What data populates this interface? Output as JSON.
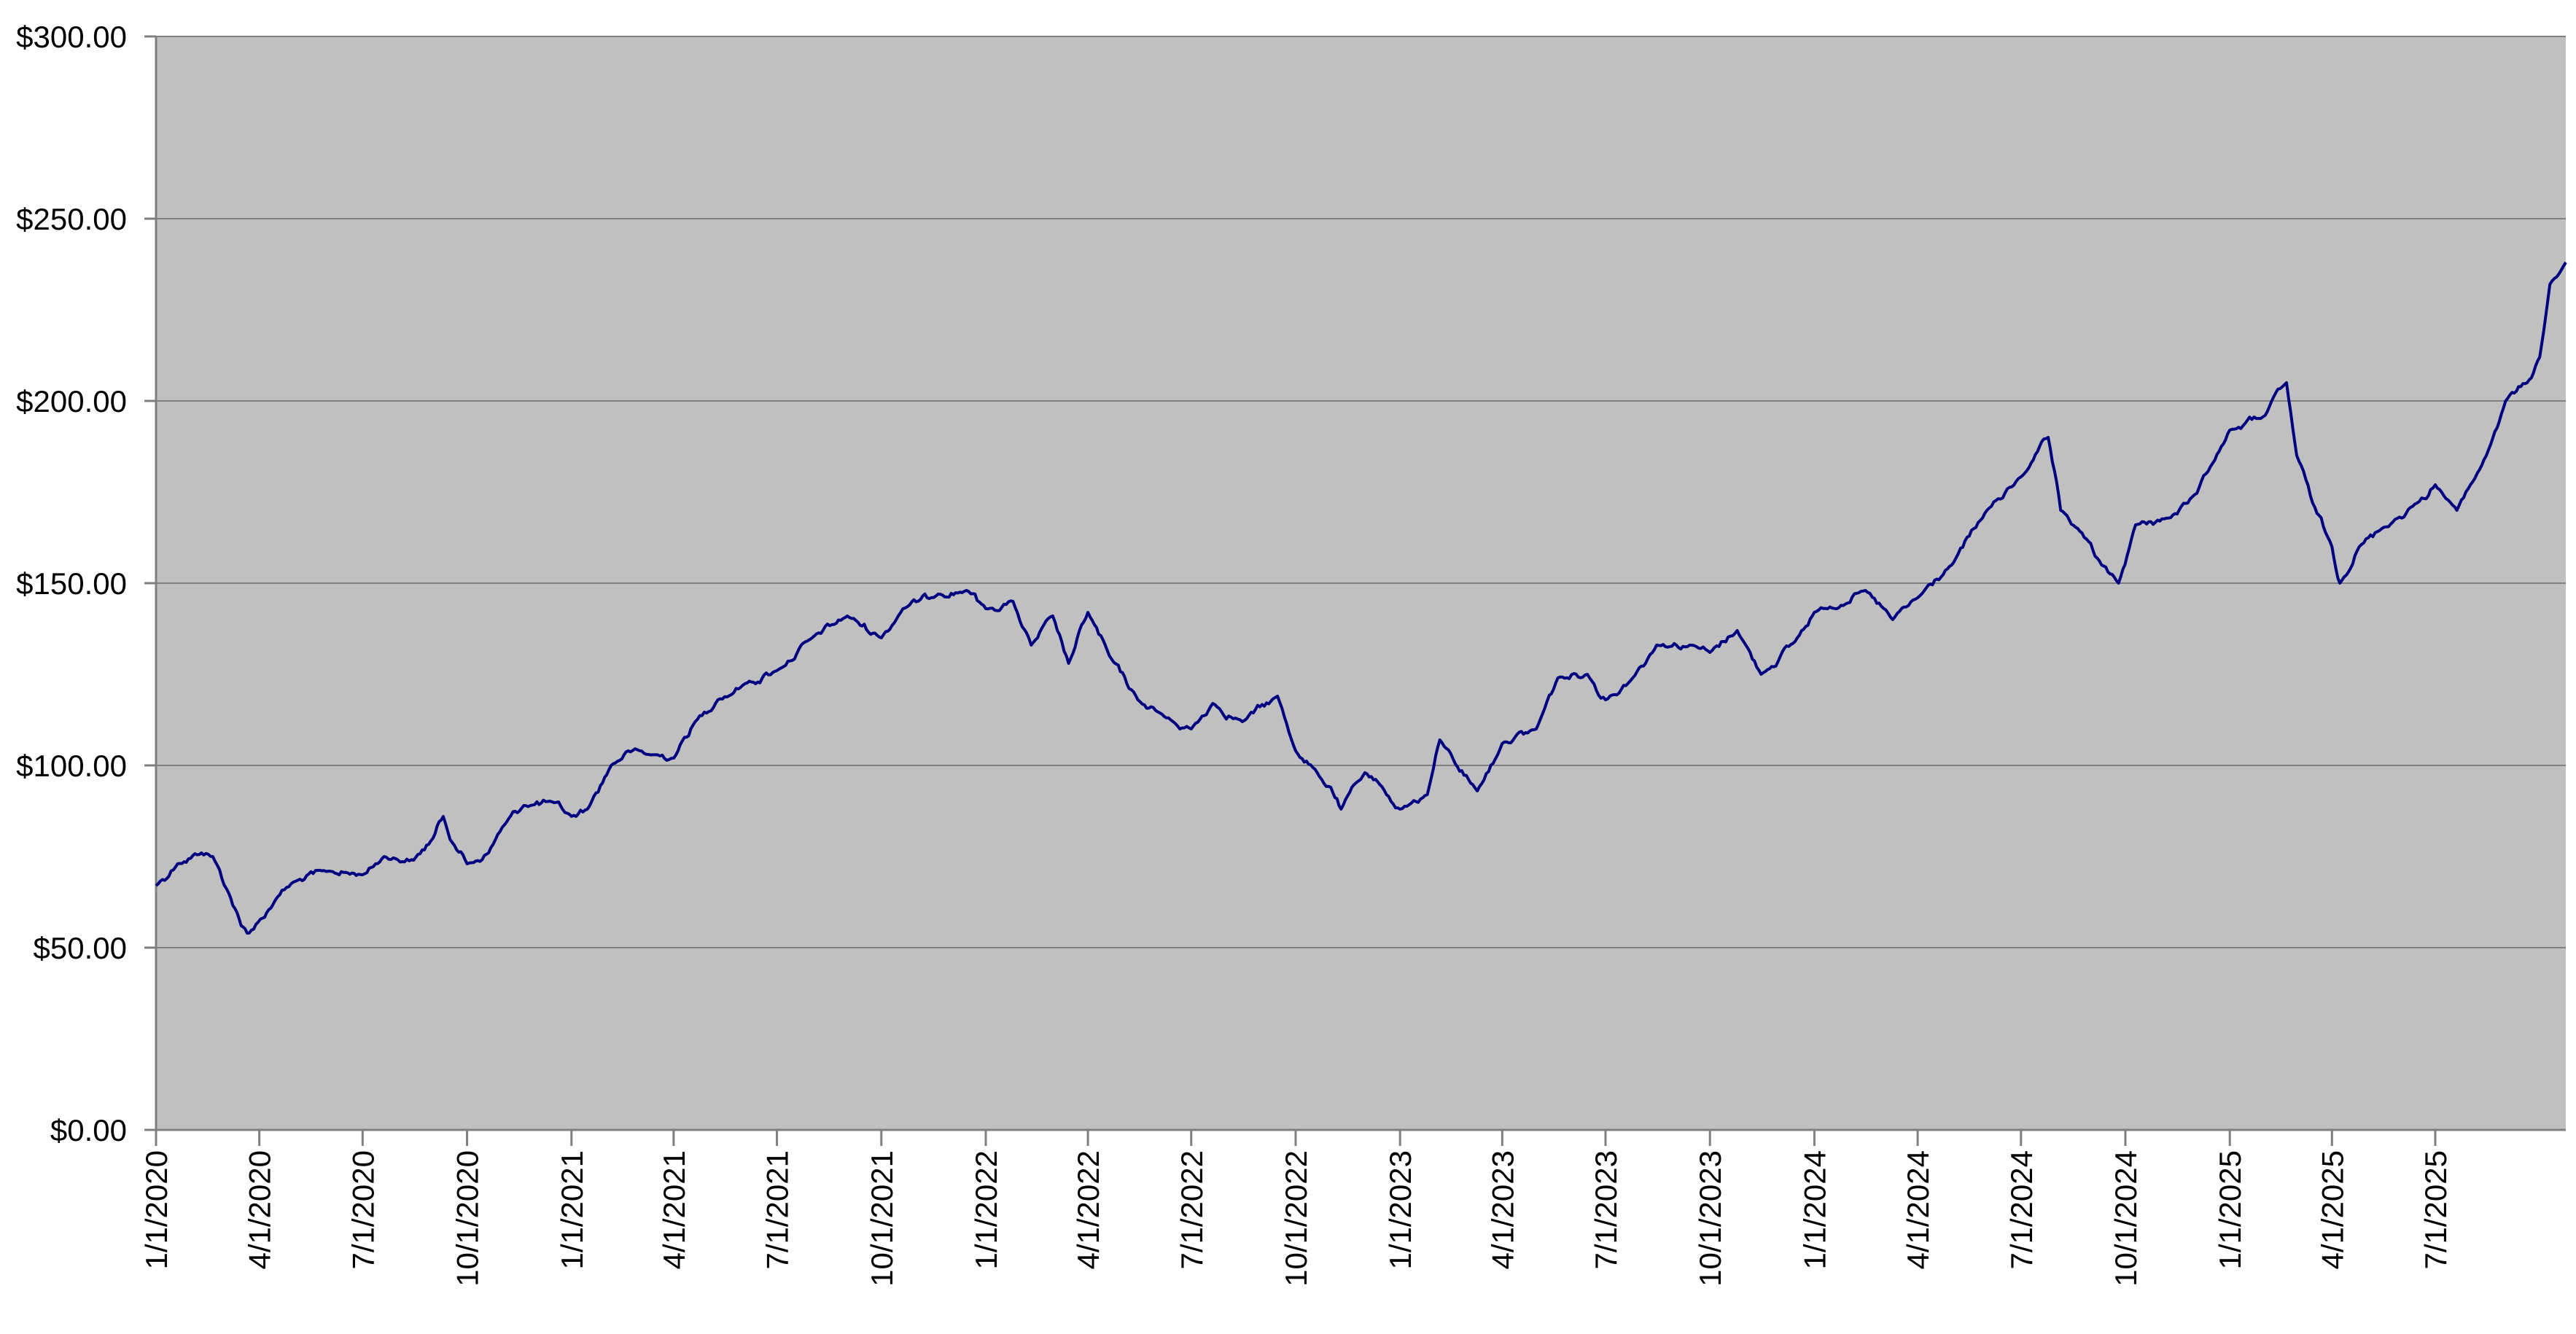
{
  "chart_data": {
    "type": "line",
    "title": "",
    "xlabel": "",
    "ylabel": "",
    "ylim": [
      0,
      300
    ],
    "xlim": [
      "2020-01-01",
      "2025-10-24"
    ],
    "grid": true,
    "legend": "none",
    "y_ticks": [
      0,
      50,
      100,
      150,
      200,
      250,
      300
    ],
    "y_tick_labels": [
      "$0.00",
      "$50.00",
      "$100.00",
      "$150.00",
      "$200.00",
      "$250.00",
      "$300.00"
    ],
    "x_ticks": [
      "2020-01-01",
      "2020-04-01",
      "2020-07-01",
      "2020-10-01",
      "2021-01-01",
      "2021-04-01",
      "2021-07-01",
      "2021-10-01",
      "2022-01-01",
      "2022-04-01",
      "2022-07-01",
      "2022-10-01",
      "2023-01-01",
      "2023-04-01",
      "2023-07-01",
      "2023-10-01",
      "2024-01-01",
      "2024-04-01",
      "2024-07-01",
      "2024-10-01",
      "2025-01-01",
      "2025-04-01",
      "2025-07-01"
    ],
    "x_tick_labels": [
      "1/1/2020",
      "4/1/2020",
      "7/1/2020",
      "10/1/2020",
      "1/1/2021",
      "4/1/2021",
      "7/1/2021",
      "10/1/2021",
      "1/1/2022",
      "4/1/2022",
      "7/1/2022",
      "10/1/2022",
      "1/1/2023",
      "4/1/2023",
      "7/1/2023",
      "10/1/2023",
      "1/1/2024",
      "4/1/2024",
      "7/1/2024",
      "10/1/2024",
      "1/1/2025",
      "4/1/2025",
      "7/1/2025"
    ],
    "colors": {
      "line": "#000080",
      "plot_background": "#c0c0c0",
      "grid": "#808080",
      "axis": "#808080"
    },
    "series": [
      {
        "x": [
          "2020-01-01",
          "2020-01-20",
          "2020-02-10",
          "2020-02-20",
          "2020-03-05",
          "2020-03-16",
          "2020-03-23",
          "2020-03-31",
          "2020-04-15",
          "2020-05-01",
          "2020-06-01",
          "2020-07-01",
          "2020-07-20",
          "2020-08-15",
          "2020-09-01",
          "2020-09-10",
          "2020-09-20",
          "2020-10-01",
          "2020-10-20",
          "2020-11-01",
          "2020-11-20",
          "2020-12-15",
          "2021-01-01",
          "2021-01-15",
          "2021-02-05",
          "2021-02-20",
          "2021-03-10",
          "2021-04-01",
          "2021-04-20",
          "2021-05-10",
          "2021-06-01",
          "2021-07-01",
          "2021-08-01",
          "2021-09-01",
          "2021-10-01",
          "2021-10-20",
          "2021-11-20",
          "2021-12-15",
          "2022-01-01",
          "2022-01-25",
          "2022-02-10",
          "2022-03-01",
          "2022-03-15",
          "2022-04-01",
          "2022-04-20",
          "2022-05-15",
          "2022-06-15",
          "2022-07-01",
          "2022-07-20",
          "2022-08-15",
          "2022-09-15",
          "2022-10-01",
          "2022-10-20",
          "2022-11-01",
          "2022-11-10",
          "2022-12-01",
          "2022-12-20",
          "2023-01-01",
          "2023-01-25",
          "2023-02-05",
          "2023-03-10",
          "2023-04-01",
          "2023-05-01",
          "2023-05-20",
          "2023-06-15",
          "2023-07-01",
          "2023-07-25",
          "2023-08-15",
          "2023-09-15",
          "2023-10-01",
          "2023-10-25",
          "2023-11-15",
          "2023-12-15",
          "2024-01-01",
          "2024-02-15",
          "2024-03-10",
          "2024-04-01",
          "2024-05-01",
          "2024-06-01",
          "2024-06-25",
          "2024-07-10",
          "2024-07-25",
          "2024-08-05",
          "2024-08-20",
          "2024-09-10",
          "2024-09-25",
          "2024-10-10",
          "2024-11-10",
          "2024-11-25",
          "2024-12-15",
          "2025-01-01",
          "2025-02-01",
          "2025-02-20",
          "2025-03-01",
          "2025-03-15",
          "2025-04-01",
          "2025-04-08",
          "2025-04-25",
          "2025-05-15",
          "2025-06-15",
          "2025-07-01",
          "2025-07-20",
          "2025-08-15",
          "2025-09-01",
          "2025-09-20",
          "2025-10-01",
          "2025-10-10",
          "2025-10-24"
        ],
        "y": [
          67,
          73,
          76,
          75,
          65,
          56,
          54,
          57,
          63,
          68,
          71,
          70,
          75,
          74,
          80,
          86,
          78,
          73,
          76,
          83,
          89,
          90,
          86,
          88,
          100,
          104,
          103,
          102,
          112,
          118,
          122,
          126,
          135,
          141,
          135,
          143,
          147,
          148,
          143,
          145,
          133,
          141,
          128,
          142,
          130,
          118,
          112,
          110,
          117,
          112,
          119,
          104,
          98,
          94,
          88,
          98,
          92,
          88,
          92,
          107,
          93,
          106,
          110,
          124,
          125,
          118,
          124,
          133,
          133,
          131,
          137,
          125,
          134,
          142,
          148,
          140,
          146,
          155,
          170,
          177,
          183,
          190,
          170,
          165,
          155,
          150,
          166,
          168,
          172,
          182,
          192,
          196,
          205,
          185,
          172,
          160,
          150,
          160,
          165,
          172,
          177,
          170,
          185,
          200,
          205,
          212,
          232,
          238
        ]
      }
    ]
  }
}
